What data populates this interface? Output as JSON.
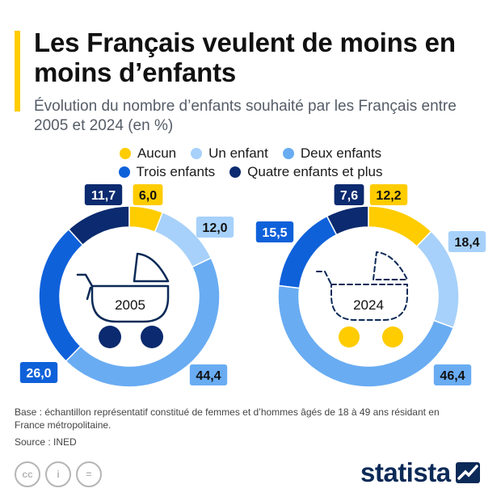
{
  "header": {
    "title": "Les Français veulent de moins en moins d’enfants",
    "subtitle": "Évolution du nombre d’enfants souhaité par les Français entre 2005 et 2024 (en %)"
  },
  "legend": {
    "row1": [
      {
        "label": "Aucun",
        "color": "#ffcc00"
      },
      {
        "label": "Un enfant",
        "color": "#a7d1fa"
      },
      {
        "label": "Deux enfants",
        "color": "#69acf2"
      }
    ],
    "row2": [
      {
        "label": "Trois enfants",
        "color": "#0f61da"
      },
      {
        "label": "Quatre enfants et plus",
        "color": "#0b2a6f"
      }
    ]
  },
  "chart_data": {
    "type": "donut",
    "title": "Évolution du nombre d’enfants souhaité par les Français entre 2005 et 2024 (en %)",
    "categories": [
      "Aucun",
      "Un enfant",
      "Deux enfants",
      "Trois enfants",
      "Quatre enfants et plus"
    ],
    "colors": [
      "#ffcc00",
      "#a7d1fa",
      "#69acf2",
      "#0f61da",
      "#0b2a6f"
    ],
    "charts": [
      {
        "year": "2005",
        "values": [
          6.0,
          12.0,
          44.4,
          26.0,
          11.7
        ],
        "labels": [
          "6,0",
          "12,0",
          "44,4",
          "26,0",
          "11,7"
        ]
      },
      {
        "year": "2024",
        "values": [
          12.2,
          18.4,
          46.4,
          15.5,
          7.6
        ],
        "labels": [
          "12,2",
          "18,4",
          "46,4",
          "15,5",
          "7,6"
        ]
      }
    ]
  },
  "footer": {
    "note": "Base : échantillon représentatif constitué de femmes et d’hommes âgés de 18 à 49 ans résidant en France métropolitaine.",
    "source": "Source : INED",
    "cc_icons": [
      {
        "icon": "creative-commons-icon",
        "text": "cc"
      },
      {
        "icon": "attribution-icon",
        "text": "i"
      },
      {
        "icon": "no-derivatives-icon",
        "text": "="
      }
    ],
    "brand": "statista",
    "brand_icon": "statista-logo-icon"
  }
}
